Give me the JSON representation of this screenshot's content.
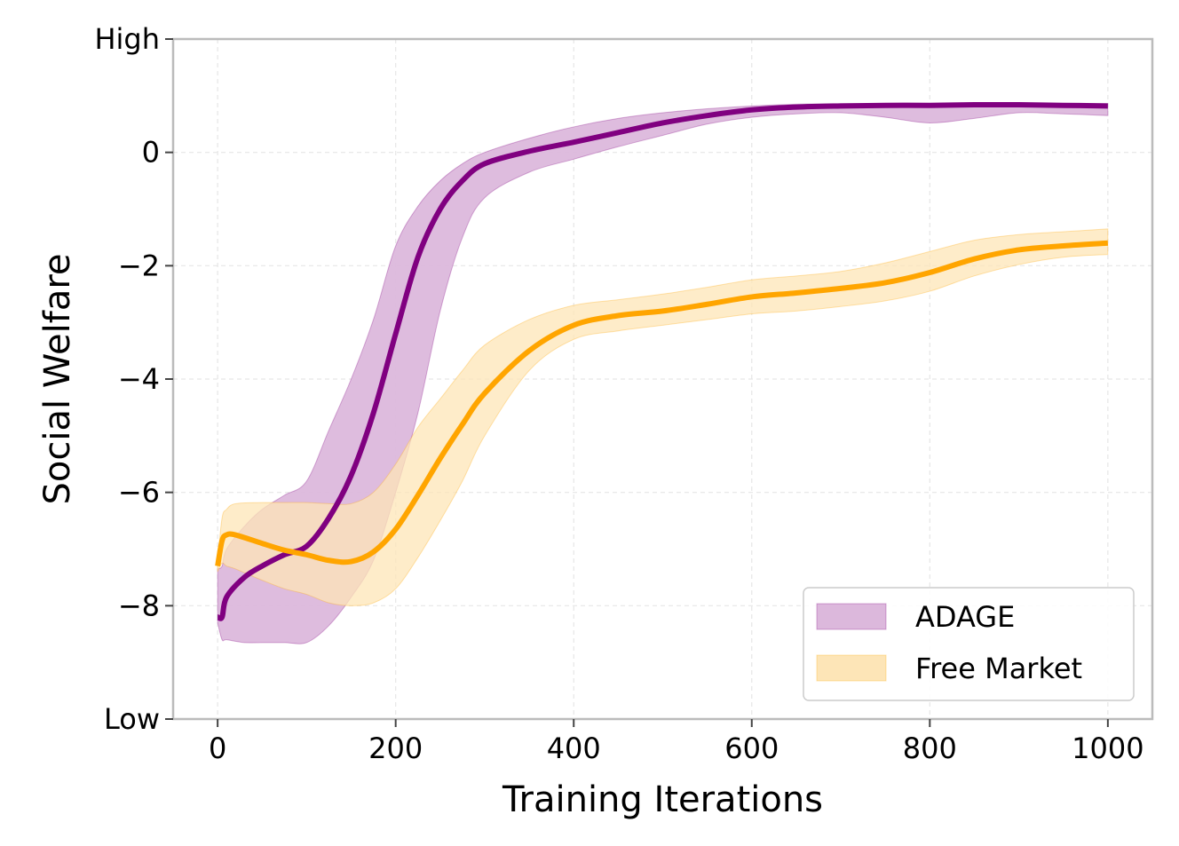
{
  "chart_data": {
    "type": "line",
    "title": "",
    "xlabel": "Training Iterations",
    "ylabel": "Social Welfare",
    "xlim": [
      -50,
      1050
    ],
    "ylim": [
      -10,
      2
    ],
    "grid": true,
    "legend_position": "bottom-right",
    "x_ticks": [
      0,
      200,
      400,
      600,
      800,
      1000
    ],
    "x_tick_labels": [
      "0",
      "200",
      "400",
      "600",
      "800",
      "1000"
    ],
    "y_ticks": [
      2,
      0,
      -2,
      -4,
      -6,
      -8,
      -10
    ],
    "y_tick_labels": [
      "High",
      "0",
      "−2",
      "−4",
      "−6",
      "−8",
      "Low"
    ],
    "series": [
      {
        "name": "ADAGE",
        "color": "#800080",
        "band_color": "#dcb8dc",
        "x": [
          0,
          5,
          10,
          30,
          50,
          75,
          100,
          125,
          150,
          175,
          200,
          225,
          250,
          275,
          300,
          350,
          400,
          450,
          500,
          550,
          600,
          650,
          700,
          750,
          800,
          850,
          900,
          950,
          1000
        ],
        "mean": [
          -8.2,
          -8.2,
          -7.85,
          -7.5,
          -7.3,
          -7.1,
          -6.95,
          -6.45,
          -5.7,
          -4.6,
          -3.2,
          -1.85,
          -1.0,
          -0.5,
          -0.2,
          0.02,
          0.18,
          0.35,
          0.52,
          0.65,
          0.75,
          0.8,
          0.82,
          0.83,
          0.83,
          0.84,
          0.84,
          0.83,
          0.82
        ],
        "upper": [
          -7.35,
          -7.3,
          -7.0,
          -6.6,
          -6.3,
          -6.05,
          -5.8,
          -4.9,
          -4.0,
          -2.95,
          -1.65,
          -0.95,
          -0.5,
          -0.2,
          0.0,
          0.25,
          0.45,
          0.6,
          0.7,
          0.77,
          0.82,
          0.85,
          0.86,
          0.86,
          0.86,
          0.86,
          0.87,
          0.86,
          0.86
        ],
        "lower": [
          -8.3,
          -8.6,
          -8.6,
          -8.65,
          -8.65,
          -8.65,
          -8.65,
          -8.35,
          -7.85,
          -7.2,
          -6.0,
          -4.6,
          -2.8,
          -1.5,
          -0.8,
          -0.35,
          -0.12,
          0.1,
          0.3,
          0.5,
          0.62,
          0.68,
          0.7,
          0.62,
          0.52,
          0.6,
          0.7,
          0.68,
          0.65
        ]
      },
      {
        "name": "Free Market",
        "color": "#FFA500",
        "band_color": "#fde5b7",
        "x": [
          0,
          5,
          10,
          20,
          50,
          75,
          100,
          125,
          150,
          175,
          200,
          225,
          250,
          275,
          300,
          350,
          400,
          450,
          500,
          550,
          600,
          650,
          700,
          750,
          800,
          850,
          900,
          950,
          1000
        ],
        "mean": [
          -7.3,
          -6.85,
          -6.75,
          -6.75,
          -6.9,
          -7.02,
          -7.1,
          -7.2,
          -7.22,
          -7.05,
          -6.65,
          -6.05,
          -5.4,
          -4.8,
          -4.25,
          -3.5,
          -3.05,
          -2.88,
          -2.8,
          -2.68,
          -2.55,
          -2.48,
          -2.4,
          -2.3,
          -2.12,
          -1.88,
          -1.72,
          -1.65,
          -1.6
        ],
        "upper": [
          -7.2,
          -6.45,
          -6.3,
          -6.2,
          -6.18,
          -6.18,
          -6.18,
          -6.2,
          -6.2,
          -6.0,
          -5.5,
          -4.85,
          -4.35,
          -3.85,
          -3.4,
          -2.95,
          -2.7,
          -2.6,
          -2.5,
          -2.38,
          -2.25,
          -2.18,
          -2.1,
          -1.95,
          -1.75,
          -1.55,
          -1.45,
          -1.4,
          -1.35
        ],
        "lower": [
          -7.4,
          -7.25,
          -7.3,
          -7.35,
          -7.55,
          -7.7,
          -7.8,
          -7.95,
          -8.0,
          -7.95,
          -7.7,
          -7.15,
          -6.5,
          -5.8,
          -5.0,
          -3.85,
          -3.3,
          -3.15,
          -3.05,
          -2.95,
          -2.85,
          -2.8,
          -2.72,
          -2.62,
          -2.45,
          -2.18,
          -1.98,
          -1.85,
          -1.8
        ]
      }
    ]
  }
}
